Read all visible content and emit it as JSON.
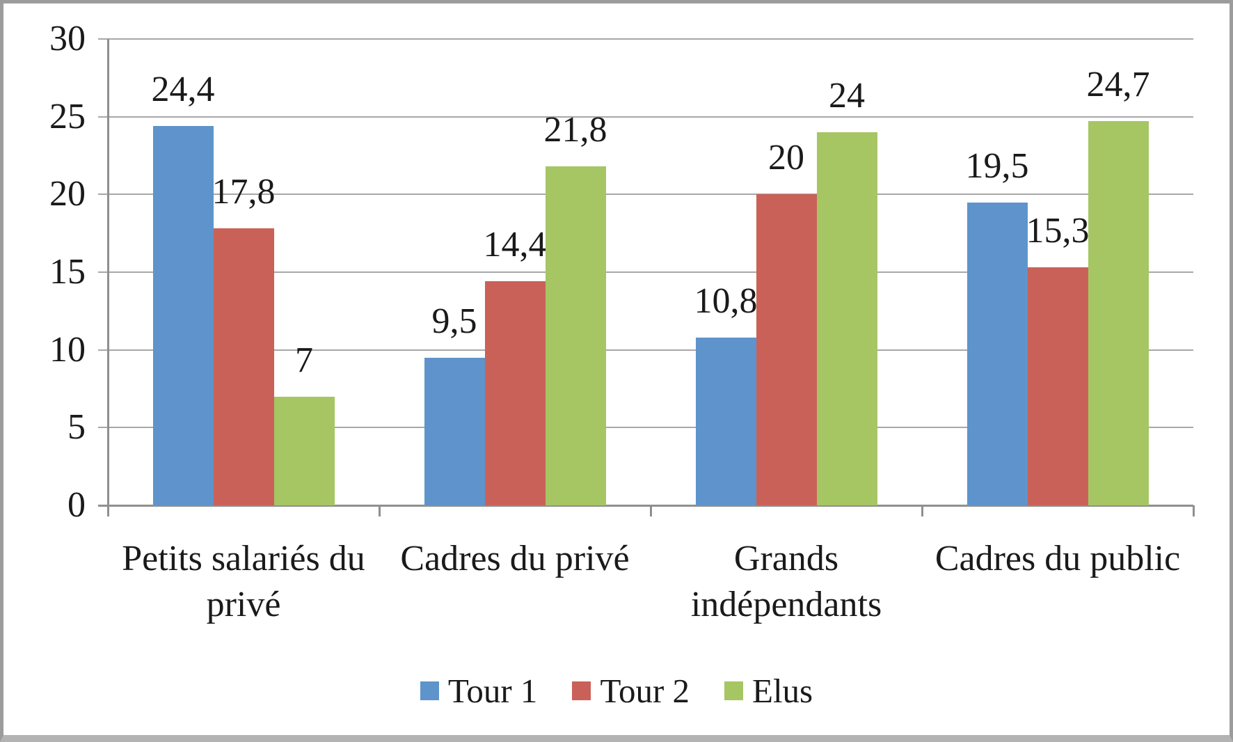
{
  "chart_data": {
    "type": "bar",
    "title": "",
    "xlabel": "",
    "ylabel": "",
    "categories": [
      "Petits salariés du privé",
      "Cadres du privé",
      "Grands indépendants",
      "Cadres du public"
    ],
    "category_label_lines": [
      [
        "Petits salariés du",
        "privé"
      ],
      [
        "Cadres du privé"
      ],
      [
        "Grands",
        "indépendants"
      ],
      [
        "Cadres du public"
      ]
    ],
    "series": [
      {
        "name": "Tour 1",
        "color": "#5E94CB",
        "values": [
          24.4,
          9.5,
          10.8,
          19.5
        ],
        "value_labels": [
          "24,4",
          "9,5",
          "10,8",
          "19,5"
        ]
      },
      {
        "name": "Tour 2",
        "color": "#CA6159",
        "values": [
          17.8,
          14.4,
          20,
          15.3
        ],
        "value_labels": [
          "17,8",
          "14,4",
          "20",
          "15,3"
        ]
      },
      {
        "name": "Elus",
        "color": "#A5C663",
        "values": [
          7,
          21.8,
          24,
          24.7
        ],
        "value_labels": [
          "7",
          "21,8",
          "24",
          "24,7"
        ]
      }
    ],
    "ylim": [
      0,
      30
    ],
    "yticks": [
      0,
      5,
      10,
      15,
      20,
      25,
      30
    ],
    "ytick_labels": [
      "0",
      "5",
      "10",
      "15",
      "20",
      "25",
      "30"
    ],
    "grid": true,
    "legend_position": "bottom"
  },
  "style": {
    "grid_color": "#a7a7a7",
    "axis_color": "#8f8f8f",
    "text_color": "#1a1a1a",
    "background": "#ffffff",
    "frame_border_color": "#9c9c9c"
  }
}
